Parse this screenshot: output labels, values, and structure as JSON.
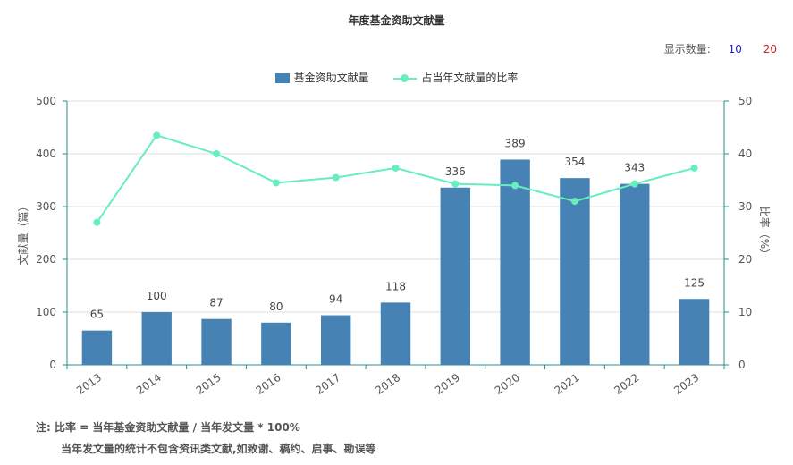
{
  "header": {
    "title": "年度基金资助文献量",
    "count_label": "显示数量:",
    "count_options": [
      "10",
      "20"
    ]
  },
  "legend": {
    "bar_label": "基金资助文献量",
    "line_label": "占当年文献量的比率"
  },
  "notes": {
    "line1": "注:  比率 = 当年基金资助文献量 / 当年发文量 * 100%",
    "line2": "当年发文量的统计不包含资讯类文献,如致谢、稿约、启事、勘误等"
  },
  "colors": {
    "bar": "#4682b4",
    "line": "#66eebb",
    "axis": "#2e8b8b",
    "grid": "#dddddd"
  },
  "chart_data": {
    "type": "bar",
    "title": "年度基金资助文献量",
    "categories": [
      "2013",
      "2014",
      "2015",
      "2016",
      "2017",
      "2018",
      "2019",
      "2020",
      "2021",
      "2022",
      "2023"
    ],
    "series": [
      {
        "name": "基金资助文献量",
        "type": "bar",
        "axis": "left",
        "values": [
          65,
          100,
          87,
          80,
          94,
          118,
          336,
          389,
          354,
          343,
          125
        ]
      },
      {
        "name": "占当年文献量的比率",
        "type": "line",
        "axis": "right",
        "values": [
          27,
          43.5,
          40,
          34.5,
          35.5,
          37.3,
          34.3,
          34,
          31,
          34.3,
          37.3
        ]
      }
    ],
    "ylabel": "文献量（篇）",
    "y2label": "比率（%）",
    "ylim": [
      0,
      500
    ],
    "y2lim": [
      0,
      50
    ],
    "yticks": [
      0,
      100,
      200,
      300,
      400,
      500
    ],
    "y2ticks": [
      0,
      10,
      20,
      30,
      40,
      50
    ],
    "grid": true,
    "legend": "top-center"
  }
}
